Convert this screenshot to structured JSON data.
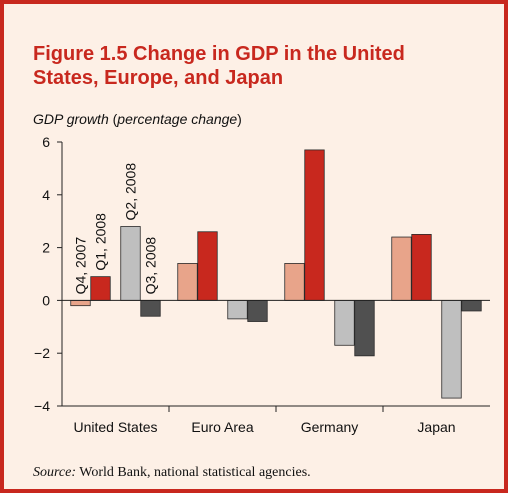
{
  "figure": {
    "title_line1": "Figure 1.5  Change in GDP in the United",
    "title_line2": "States, Europe, and Japan",
    "axis_caption_italic": "GDP growth",
    "axis_caption_paren_open": " (",
    "axis_caption_unit": "percentage change",
    "axis_caption_paren_close": ")",
    "source_label": "Source:",
    "source_text": " World Bank, national statistical agencies."
  },
  "colors": {
    "background": "#fdf0e6",
    "frame": "#c8281e",
    "title": "#c8281e"
  },
  "chart_data": {
    "type": "bar",
    "categories": [
      "United States",
      "Euro Area",
      "Germany",
      "Japan"
    ],
    "series": [
      {
        "name": "Q4, 2007",
        "color": "#e8a48a",
        "values": [
          -0.2,
          1.4,
          1.4,
          2.4
        ]
      },
      {
        "name": "Q1, 2008",
        "color": "#c8281e",
        "values": [
          0.9,
          2.6,
          5.7,
          2.5
        ]
      },
      {
        "name": "Q2, 2008",
        "color": "#bfbfbf",
        "values": [
          2.8,
          -0.7,
          -1.7,
          -3.7
        ]
      },
      {
        "name": "Q3, 2008",
        "color": "#505050",
        "values": [
          -0.6,
          -0.8,
          -2.1,
          -0.4
        ]
      }
    ],
    "ylim": [
      -4,
      6
    ],
    "yticks": [
      -4,
      -2,
      0,
      2,
      4,
      6
    ],
    "ytick_labels": [
      "−4",
      "−2",
      "0",
      "2",
      "4",
      "6"
    ],
    "series_labels_on": "United States",
    "grid": false
  }
}
